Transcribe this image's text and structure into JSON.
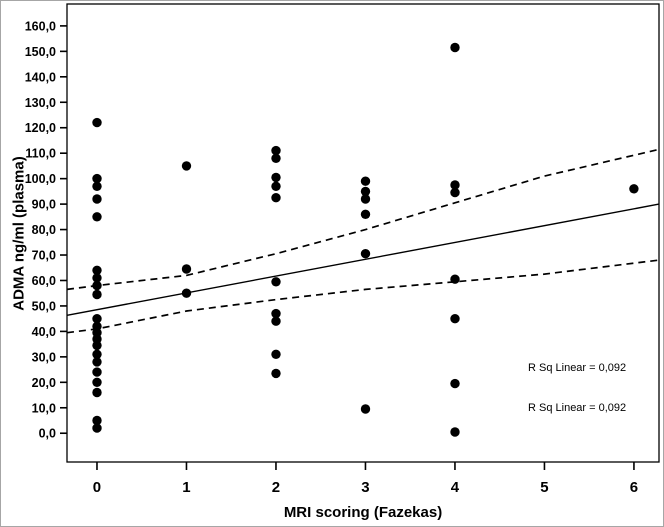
{
  "figure": {
    "y_axis_title": "ADMA ng/ml (plasma)",
    "x_axis_title": "MRI scoring (Fazekas)",
    "annotations": {
      "rsq_top": "R Sq Linear = 0,092",
      "rsq_bottom": "R Sq Linear = 0,092"
    }
  },
  "chart_data": {
    "type": "scatter",
    "title": "",
    "xlabel": "MRI scoring (Fazekas)",
    "ylabel": "ADMA ng/ml (plasma)",
    "xlim": [
      -0.335,
      6.28
    ],
    "ylim": [
      -11.3,
      168.6
    ],
    "grid": false,
    "x_tick_values": [
      0,
      1,
      2,
      3,
      4,
      5,
      6
    ],
    "x_tick_labels": [
      "0",
      "1",
      "2",
      "3",
      "4",
      "5",
      "6"
    ],
    "y_tick_values": [
      0,
      10,
      20,
      30,
      40,
      50,
      60,
      70,
      80,
      90,
      100,
      110,
      120,
      130,
      140,
      150,
      160
    ],
    "y_tick_labels": [
      "0,0",
      "10,0",
      "20,0",
      "30,0",
      "40,0",
      "50,0",
      "60,0",
      "70,0",
      "80,0",
      "90,0",
      "100,0",
      "110,0",
      "120,0",
      "130,0",
      "140,0",
      "150,0",
      "160,0"
    ],
    "point_color": "#000000",
    "line_color": "#000000",
    "points": [
      [
        0,
        122
      ],
      [
        0,
        100
      ],
      [
        0,
        97
      ],
      [
        0,
        92
      ],
      [
        0,
        85
      ],
      [
        0,
        64
      ],
      [
        0,
        61
      ],
      [
        0,
        58
      ],
      [
        0,
        54.5
      ],
      [
        0,
        45
      ],
      [
        0,
        42
      ],
      [
        0,
        39.5
      ],
      [
        0,
        37
      ],
      [
        0,
        34.5
      ],
      [
        0,
        31
      ],
      [
        0,
        28
      ],
      [
        0,
        24
      ],
      [
        0,
        20
      ],
      [
        0,
        16
      ],
      [
        0,
        5
      ],
      [
        0,
        2
      ],
      [
        1,
        105
      ],
      [
        1,
        64.5
      ],
      [
        1,
        55
      ],
      [
        2,
        111
      ],
      [
        2,
        108
      ],
      [
        2,
        100.5
      ],
      [
        2,
        97
      ],
      [
        2,
        92.5
      ],
      [
        2,
        59.5
      ],
      [
        2,
        47
      ],
      [
        2,
        44
      ],
      [
        2,
        31
      ],
      [
        2,
        23.5
      ],
      [
        3,
        99
      ],
      [
        3,
        95
      ],
      [
        3,
        92
      ],
      [
        3,
        86
      ],
      [
        3,
        70.5
      ],
      [
        3,
        9.5
      ],
      [
        4,
        151.5
      ],
      [
        4,
        97.5
      ],
      [
        4,
        94.5
      ],
      [
        4,
        60.5
      ],
      [
        4,
        45
      ],
      [
        4,
        19.5
      ],
      [
        4,
        0.5
      ],
      [
        6,
        96
      ]
    ],
    "regression_line": {
      "x": [
        -0.335,
        6.28
      ],
      "y": [
        46.3,
        90.0
      ]
    },
    "ci_upper": {
      "x": [
        -0.335,
        0,
        1,
        2,
        3,
        4,
        5,
        6.28
      ],
      "y": [
        56.5,
        58.0,
        62.0,
        70.5,
        80.0,
        90.5,
        101.0,
        111.5
      ]
    },
    "ci_lower": {
      "x": [
        -0.335,
        0,
        1,
        2,
        3,
        4,
        5,
        6.28
      ],
      "y": [
        39.5,
        41.0,
        48.0,
        52.5,
        56.5,
        59.5,
        62.5,
        68.0
      ]
    },
    "r_sq_value": "0,092"
  }
}
